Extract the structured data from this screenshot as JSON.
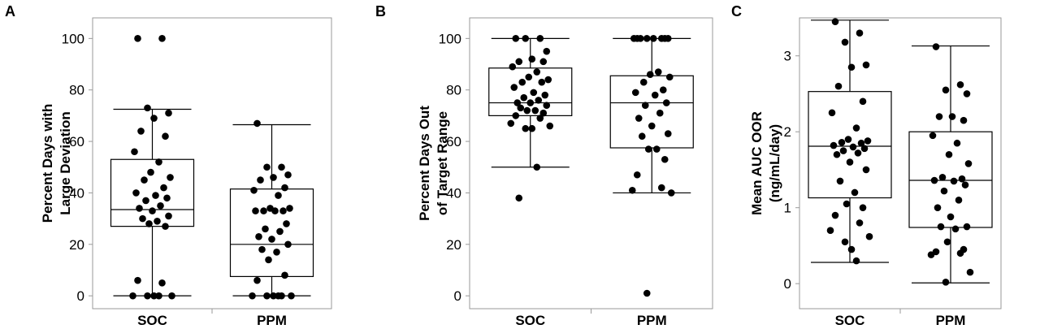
{
  "chart_data": [
    {
      "type": "box",
      "panel": "A",
      "ylabel": [
        "Percent Days with",
        "Large Deviation"
      ],
      "categories": [
        "SOC",
        "PPM"
      ],
      "ylim": [
        -5,
        108
      ],
      "yticks": [
        0,
        20,
        40,
        60,
        80,
        100
      ],
      "boxes": [
        {
          "category": "SOC",
          "min": 0,
          "q1": 27,
          "median": 33.5,
          "q3": 53,
          "max": 72.5,
          "points": [
            100,
            100,
            73,
            71,
            69,
            64,
            62,
            56,
            52,
            48,
            46,
            45,
            42,
            40,
            39,
            38,
            37,
            35,
            34,
            33,
            31,
            30,
            29,
            28,
            27,
            6,
            5,
            0,
            0,
            0,
            0,
            0
          ]
        },
        {
          "category": "PPM",
          "min": 0,
          "q1": 7.5,
          "median": 20,
          "q3": 41.5,
          "max": 66.5,
          "points": [
            67,
            50,
            50,
            47,
            46,
            45,
            42,
            41,
            39,
            34,
            34,
            33,
            33,
            33,
            33,
            28,
            26,
            25,
            23,
            22,
            20,
            18,
            17,
            14,
            8,
            6,
            0,
            0,
            0,
            0,
            0,
            0
          ]
        }
      ]
    },
    {
      "type": "box",
      "panel": "B",
      "ylabel": [
        "Percent Days Out",
        "of Target Range"
      ],
      "categories": [
        "SOC",
        "PPM"
      ],
      "ylim": [
        -5,
        108
      ],
      "yticks": [
        0,
        20,
        40,
        60,
        80,
        100
      ],
      "boxes": [
        {
          "category": "SOC",
          "min": 50,
          "q1": 70,
          "median": 75,
          "q3": 88.5,
          "max": 100,
          "points": [
            100,
            100,
            100,
            95,
            92,
            91,
            91,
            89,
            87,
            85,
            84,
            83,
            83,
            81,
            79,
            78,
            77,
            76,
            75,
            75,
            74,
            73,
            72,
            72,
            71,
            70,
            69,
            67,
            66,
            65,
            65,
            50,
            38
          ]
        },
        {
          "category": "PPM",
          "min": 40,
          "q1": 57.5,
          "median": 75,
          "q3": 85.5,
          "max": 100,
          "points": [
            100,
            100,
            100,
            100,
            100,
            100,
            100,
            100,
            87,
            86,
            85,
            83,
            80,
            79,
            78,
            75,
            74,
            71,
            69,
            66,
            63,
            62,
            57,
            57,
            53,
            47,
            42,
            41,
            40,
            1
          ]
        }
      ]
    },
    {
      "type": "box",
      "panel": "C",
      "ylabel": [
        "Mean AUC OOR",
        "(ng/mL/day)"
      ],
      "categories": [
        "SOC",
        "PPM"
      ],
      "ylim": [
        -0.33,
        3.5
      ],
      "yticks": [
        0,
        1,
        2,
        3
      ],
      "boxes": [
        {
          "category": "SOC",
          "min": 0.28,
          "q1": 1.13,
          "median": 1.81,
          "q3": 2.53,
          "max": 3.47,
          "points": [
            3.45,
            3.3,
            3.18,
            2.88,
            2.85,
            2.6,
            2.4,
            2.25,
            2.05,
            1.9,
            1.88,
            1.86,
            1.85,
            1.82,
            1.8,
            1.78,
            1.75,
            1.72,
            1.7,
            1.6,
            1.5,
            1.35,
            1.2,
            1.05,
            1.0,
            0.9,
            0.8,
            0.7,
            0.62,
            0.55,
            0.45,
            0.3
          ]
        },
        {
          "category": "PPM",
          "min": 0.01,
          "q1": 0.74,
          "median": 1.36,
          "q3": 2.0,
          "max": 3.13,
          "points": [
            3.12,
            2.62,
            2.55,
            2.5,
            2.2,
            2.2,
            2.15,
            1.95,
            1.85,
            1.7,
            1.58,
            1.4,
            1.38,
            1.36,
            1.35,
            1.3,
            1.22,
            1.1,
            1.0,
            0.88,
            0.75,
            0.75,
            0.72,
            0.55,
            0.45,
            0.42,
            0.4,
            0.38,
            0.15,
            0.02
          ]
        }
      ]
    }
  ]
}
